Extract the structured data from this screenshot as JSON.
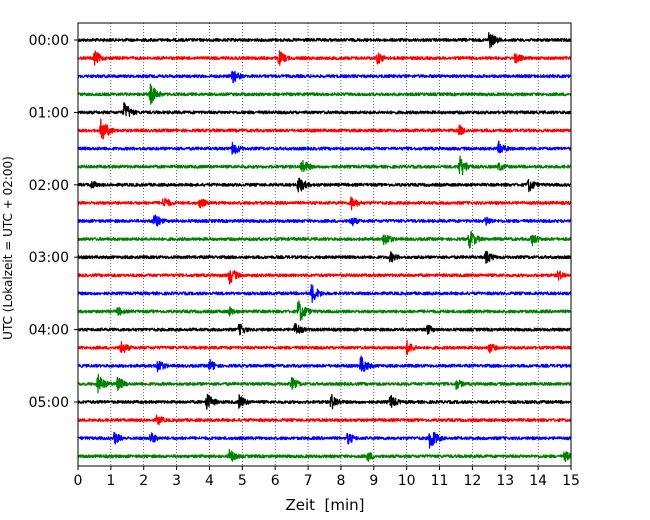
{
  "chart_data": {
    "type": "line",
    "title": "",
    "xlabel": "Zeit  [min]",
    "ylabel": "UTC (Lokalzeit = UTC + 02:00)",
    "xlim": [
      0,
      15
    ],
    "x_ticks": [
      "0",
      "1",
      "2",
      "3",
      "4",
      "5",
      "6",
      "7",
      "8",
      "9",
      "10",
      "11",
      "12",
      "13",
      "14",
      "15"
    ],
    "y_tick_labels": [
      "00:00",
      "01:00",
      "02:00",
      "03:00",
      "04:00",
      "05:00"
    ],
    "grid": "vertical dotted at each minute",
    "minutes_per_line": 15,
    "line_count": 24,
    "trace_color_cycle": [
      "#000000",
      "#ff0000",
      "#0000ff",
      "#008000"
    ],
    "lines": [
      {
        "start": "00:00",
        "events": [
          [
            12.5,
            0.55
          ]
        ]
      },
      {
        "start": "00:15",
        "events": [
          [
            0.5,
            0.45
          ],
          [
            6.1,
            0.5
          ],
          [
            9.1,
            0.4
          ],
          [
            13.3,
            0.35
          ]
        ]
      },
      {
        "start": "00:30",
        "events": [
          [
            4.7,
            0.45
          ]
        ]
      },
      {
        "start": "00:45",
        "events": [
          [
            2.2,
            0.6
          ]
        ]
      },
      {
        "start": "01:00",
        "events": [
          [
            1.4,
            0.6
          ]
        ]
      },
      {
        "start": "01:15",
        "events": [
          [
            0.7,
            0.75
          ],
          [
            11.6,
            0.35
          ]
        ]
      },
      {
        "start": "01:30",
        "events": [
          [
            4.7,
            0.45
          ],
          [
            12.8,
            0.45
          ]
        ]
      },
      {
        "start": "01:45",
        "events": [
          [
            6.8,
            0.5
          ],
          [
            11.6,
            0.7
          ],
          [
            12.8,
            0.3
          ]
        ]
      },
      {
        "start": "02:00",
        "events": [
          [
            0.4,
            0.3
          ],
          [
            6.7,
            0.55
          ],
          [
            13.7,
            0.45
          ]
        ]
      },
      {
        "start": "02:15",
        "events": [
          [
            2.6,
            0.4
          ],
          [
            3.7,
            0.35
          ],
          [
            8.3,
            0.45
          ]
        ]
      },
      {
        "start": "02:30",
        "events": [
          [
            2.3,
            0.5
          ],
          [
            8.3,
            0.35
          ],
          [
            12.4,
            0.35
          ]
        ]
      },
      {
        "start": "02:45",
        "events": [
          [
            9.3,
            0.45
          ],
          [
            11.9,
            0.6
          ],
          [
            13.8,
            0.4
          ]
        ]
      },
      {
        "start": "03:00",
        "events": [
          [
            9.5,
            0.35
          ],
          [
            12.4,
            0.45
          ]
        ]
      },
      {
        "start": "03:15",
        "events": [
          [
            4.6,
            0.55
          ],
          [
            14.6,
            0.35
          ]
        ]
      },
      {
        "start": "03:30",
        "events": [
          [
            7.1,
            0.6
          ]
        ]
      },
      {
        "start": "03:45",
        "events": [
          [
            6.7,
            0.75
          ],
          [
            1.2,
            0.3
          ],
          [
            4.6,
            0.3
          ]
        ]
      },
      {
        "start": "04:00",
        "events": [
          [
            4.9,
            0.4
          ],
          [
            6.6,
            0.45
          ],
          [
            10.6,
            0.35
          ]
        ]
      },
      {
        "start": "04:15",
        "events": [
          [
            1.3,
            0.45
          ],
          [
            10.0,
            0.45
          ],
          [
            12.5,
            0.35
          ]
        ]
      },
      {
        "start": "04:30",
        "events": [
          [
            2.4,
            0.45
          ],
          [
            4.0,
            0.4
          ],
          [
            8.6,
            0.6
          ]
        ]
      },
      {
        "start": "04:45",
        "events": [
          [
            0.6,
            0.6
          ],
          [
            1.2,
            0.45
          ],
          [
            6.5,
            0.4
          ],
          [
            11.5,
            0.35
          ]
        ]
      },
      {
        "start": "05:00",
        "events": [
          [
            3.9,
            0.55
          ],
          [
            4.9,
            0.45
          ],
          [
            7.7,
            0.5
          ],
          [
            9.5,
            0.45
          ]
        ]
      },
      {
        "start": "05:15",
        "events": [
          [
            2.4,
            0.35
          ]
        ]
      },
      {
        "start": "05:30",
        "events": [
          [
            1.1,
            0.4
          ],
          [
            2.2,
            0.4
          ],
          [
            8.2,
            0.4
          ],
          [
            10.7,
            0.7
          ]
        ]
      },
      {
        "start": "05:45",
        "events": [
          [
            4.6,
            0.45
          ],
          [
            8.8,
            0.35
          ],
          [
            14.8,
            0.35
          ]
        ]
      }
    ]
  }
}
